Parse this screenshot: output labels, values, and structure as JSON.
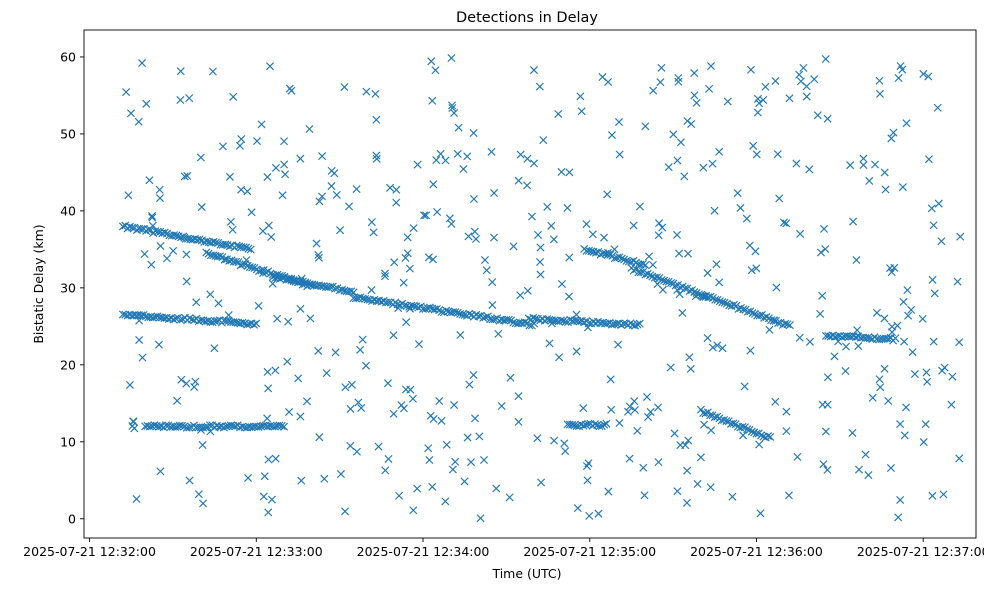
{
  "chart_data": {
    "type": "scatter",
    "title": "Detections in Delay",
    "xlabel": "Time (UTC)",
    "ylabel": "Bistatic Delay (km)",
    "x_unit": "datetime",
    "xlim": [
      "2025-07-21 12:31:58",
      "2025-07-21 12:37:19"
    ],
    "ylim": [
      -2.5,
      63.5
    ],
    "x_ticks": [
      "2025-07-21 12:32:00",
      "2025-07-21 12:33:00",
      "2025-07-21 12:34:00",
      "2025-07-21 12:35:00",
      "2025-07-21 12:36:00",
      "2025-07-21 12:37:00"
    ],
    "y_ticks": [
      0,
      10,
      20,
      30,
      40,
      50,
      60
    ],
    "marker": "x",
    "marker_color": "#1f77b4",
    "grid": false,
    "legend": "none",
    "tracks": [
      {
        "name": "",
        "start": "2025-07-21 12:32:12",
        "end": "2025-07-21 12:32:58",
        "y_start": 38.0,
        "y_end": 35.0
      },
      {
        "name": "",
        "start": "2025-07-21 12:32:42",
        "end": "2025-07-21 12:33:20",
        "y_start": 34.5,
        "y_end": 30.2
      },
      {
        "name": "",
        "start": "2025-07-21 12:33:06",
        "end": "2025-07-21 12:33:35",
        "y_start": 31.5,
        "y_end": 29.5
      },
      {
        "name": "",
        "start": "2025-07-21 12:33:35",
        "end": "2025-07-21 12:34:40",
        "y_start": 28.8,
        "y_end": 25.2
      },
      {
        "name": "",
        "start": "2025-07-21 12:34:38",
        "end": "2025-07-21 12:35:18",
        "y_start": 26.0,
        "y_end": 25.2
      },
      {
        "name": "",
        "start": "2025-07-21 12:34:58",
        "end": "2025-07-21 12:35:20",
        "y_start": 35.0,
        "y_end": 33.0
      },
      {
        "name": "",
        "start": "2025-07-21 12:35:15",
        "end": "2025-07-21 12:36:12",
        "y_start": 32.5,
        "y_end": 25.0
      },
      {
        "name": "",
        "start": "2025-07-21 12:36:25",
        "end": "2025-07-21 12:36:50",
        "y_start": 23.8,
        "y_end": 23.3
      },
      {
        "name": "",
        "start": "2025-07-21 12:32:12",
        "end": "2025-07-21 12:33:00",
        "y_start": 26.5,
        "y_end": 25.3
      },
      {
        "name": "",
        "start": "2025-07-21 12:32:20",
        "end": "2025-07-21 12:33:10",
        "y_start": 12.0,
        "y_end": 12.0
      },
      {
        "name": "",
        "start": "2025-07-21 12:34:52",
        "end": "2025-07-21 12:35:06",
        "y_start": 12.2,
        "y_end": 12.2
      },
      {
        "name": "",
        "start": "2025-07-21 12:35:40",
        "end": "2025-07-21 12:36:05",
        "y_start": 14.0,
        "y_end": 10.5
      }
    ],
    "noise": {
      "count": 520,
      "y_range": [
        0,
        60
      ],
      "start": "2025-07-21 12:32:13",
      "end": "2025-07-21 12:37:14"
    }
  }
}
